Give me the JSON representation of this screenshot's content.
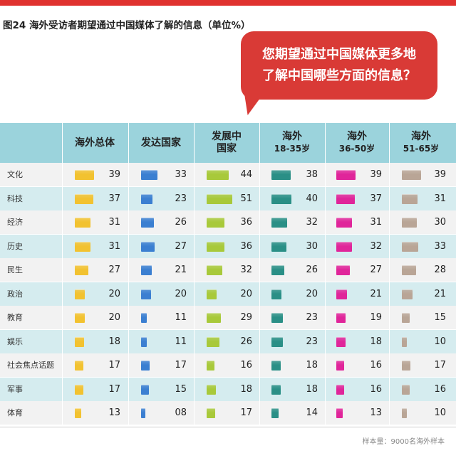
{
  "figure_title": "图24  海外受访者期望通过中国媒体了解的信息（单位%）",
  "bubble": {
    "line1": "您期望通过中国媒体更多地",
    "line2": "了解中国哪些方面的信息？"
  },
  "footnote": "样本量：9000名海外样本",
  "colors": {
    "header_bg": "#9bd3dc",
    "row_alt": "#d5ecef",
    "row_plain": "#f2f2f2",
    "bubble": "#d93a36",
    "series": [
      "#f2c230",
      "#3b7fd1",
      "#a8c93a",
      "#2a8f86",
      "#e0259a",
      "#b9a596"
    ]
  },
  "chart_data": {
    "type": "table",
    "title": "图24  海外受访者期望通过中国媒体了解的信息（单位%）",
    "columns": [
      {
        "line1": "海外总体",
        "line2": ""
      },
      {
        "line1": "发达国家",
        "line2": ""
      },
      {
        "line1": "发展中",
        "line2": "国家"
      },
      {
        "line1": "海外",
        "line2": "18-35岁"
      },
      {
        "line1": "海外",
        "line2": "36-50岁"
      },
      {
        "line1": "海外",
        "line2": "51-65岁"
      }
    ],
    "categories": [
      "文化",
      "科技",
      "经济",
      "历史",
      "民生",
      "政治",
      "教育",
      "娱乐",
      "社会焦点话题",
      "军事",
      "体育"
    ],
    "series": [
      {
        "name": "海外总体",
        "values": [
          "39",
          "37",
          "31",
          "31",
          "27",
          "20",
          "20",
          "18",
          "17",
          "17",
          "13"
        ]
      },
      {
        "name": "发达国家",
        "values": [
          "33",
          "23",
          "26",
          "27",
          "21",
          "20",
          "11",
          "11",
          "17",
          "15",
          "08"
        ]
      },
      {
        "name": "发展中国家",
        "values": [
          "44",
          "51",
          "36",
          "36",
          "32",
          "20",
          "29",
          "26",
          "16",
          "18",
          "17"
        ]
      },
      {
        "name": "海外18-35岁",
        "values": [
          "38",
          "40",
          "32",
          "30",
          "26",
          "20",
          "23",
          "23",
          "18",
          "18",
          "14"
        ]
      },
      {
        "name": "海外36-50岁",
        "values": [
          "39",
          "37",
          "31",
          "32",
          "27",
          "21",
          "19",
          "18",
          "16",
          "16",
          "13"
        ]
      },
      {
        "name": "海外51-65岁",
        "values": [
          "39",
          "31",
          "30",
          "33",
          "28",
          "21",
          "15",
          "10",
          "17",
          "16",
          "10"
        ]
      }
    ],
    "unit": "%"
  }
}
